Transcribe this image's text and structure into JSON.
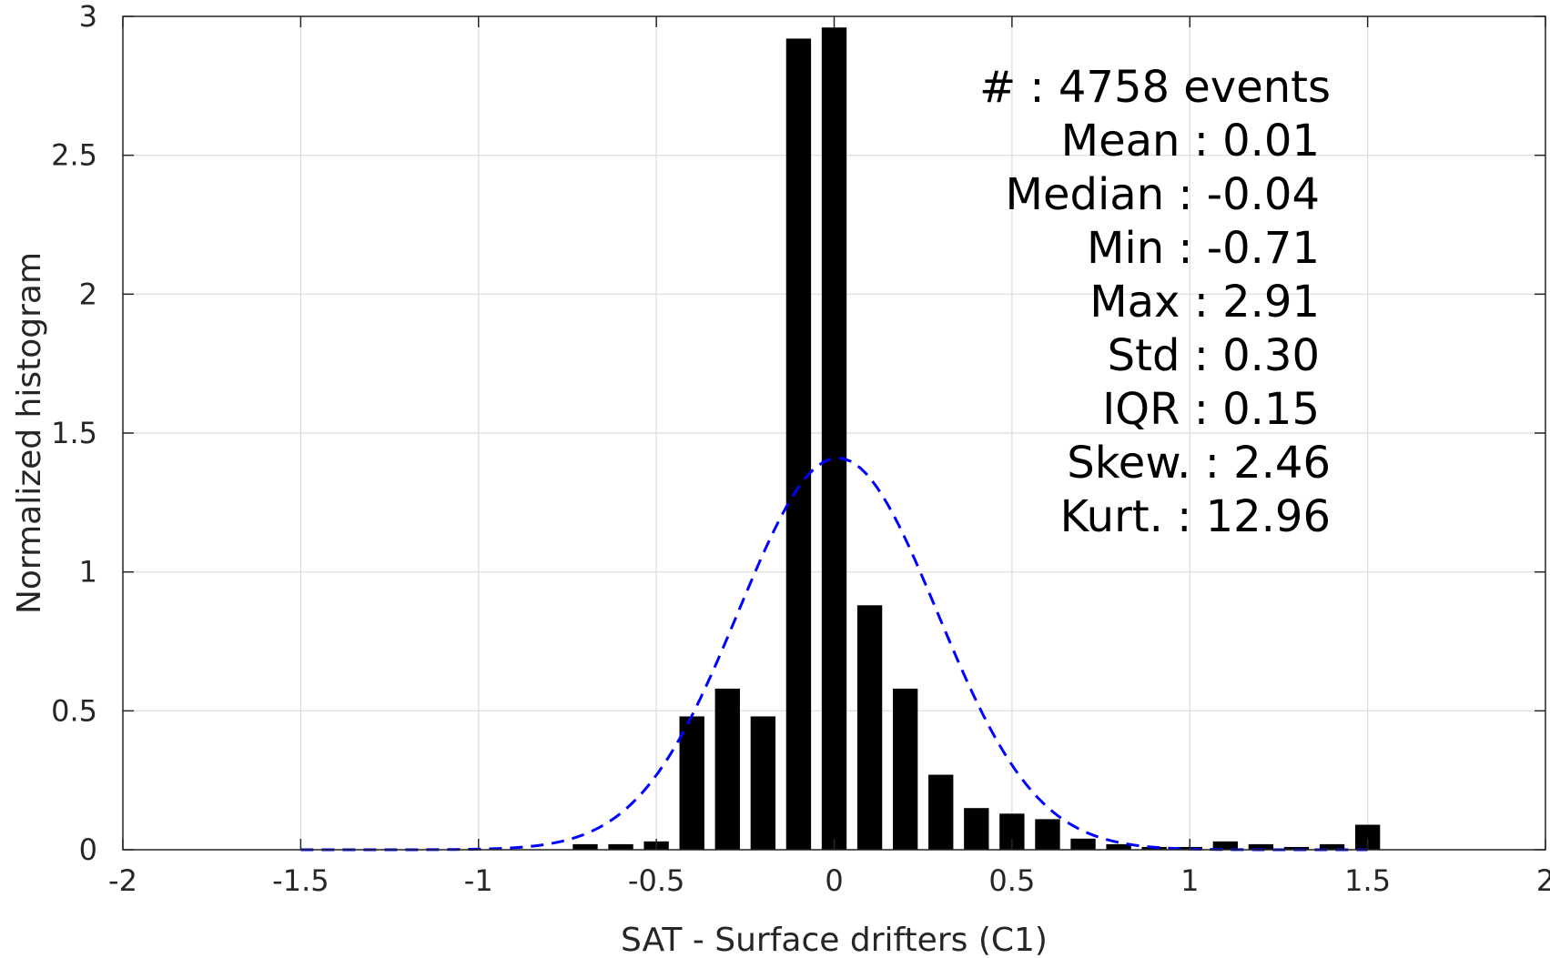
{
  "chart_data": {
    "type": "bar",
    "xlabel": "SAT - Surface drifters (C1)",
    "ylabel": "Normalized histogram",
    "xlim": [
      -2,
      2
    ],
    "ylim": [
      0,
      3
    ],
    "xticks": [
      -2,
      -1.5,
      -1,
      -0.5,
      0,
      0.5,
      1,
      1.5,
      2
    ],
    "xtick_labels": [
      "-2",
      "-1.5",
      "-1",
      "-0.5",
      "0",
      "0.5",
      "1",
      "1.5",
      "2"
    ],
    "yticks": [
      0,
      0.5,
      1,
      1.5,
      2,
      2.5,
      3
    ],
    "ytick_labels": [
      "0",
      "0.5",
      "1",
      "1.5",
      "2",
      "2.5",
      "3"
    ],
    "grid": true,
    "bar_width": 0.07,
    "histogram": {
      "x": [
        -0.7,
        -0.6,
        -0.5,
        -0.4,
        -0.3,
        -0.2,
        -0.1,
        0.0,
        0.1,
        0.2,
        0.3,
        0.4,
        0.5,
        0.6,
        0.7,
        0.8,
        0.9,
        1.0,
        1.1,
        1.2,
        1.3,
        1.4,
        1.5
      ],
      "values": [
        0.02,
        0.02,
        0.03,
        0.48,
        0.58,
        0.48,
        2.92,
        2.96,
        0.88,
        0.58,
        0.27,
        0.15,
        0.13,
        0.11,
        0.04,
        0.02,
        0.01,
        0.01,
        0.03,
        0.02,
        0.01,
        0.02,
        0.09
      ],
      "color": "#000000"
    },
    "gaussian_fit": {
      "mean": 0.01,
      "std": 0.28,
      "peak": 1.41,
      "x_range": [
        -1.5,
        1.5
      ],
      "color": "#0000ff",
      "style": "dashed"
    },
    "stats_lines": [
      "#  : 4758 events",
      "Mean : 0.01",
      "Median : -0.04",
      "Min : -0.71",
      "Max : 2.91",
      "Std : 0.30",
      "IQR : 0.15",
      "Skew. : 2.46",
      "Kurt. : 12.96"
    ]
  }
}
